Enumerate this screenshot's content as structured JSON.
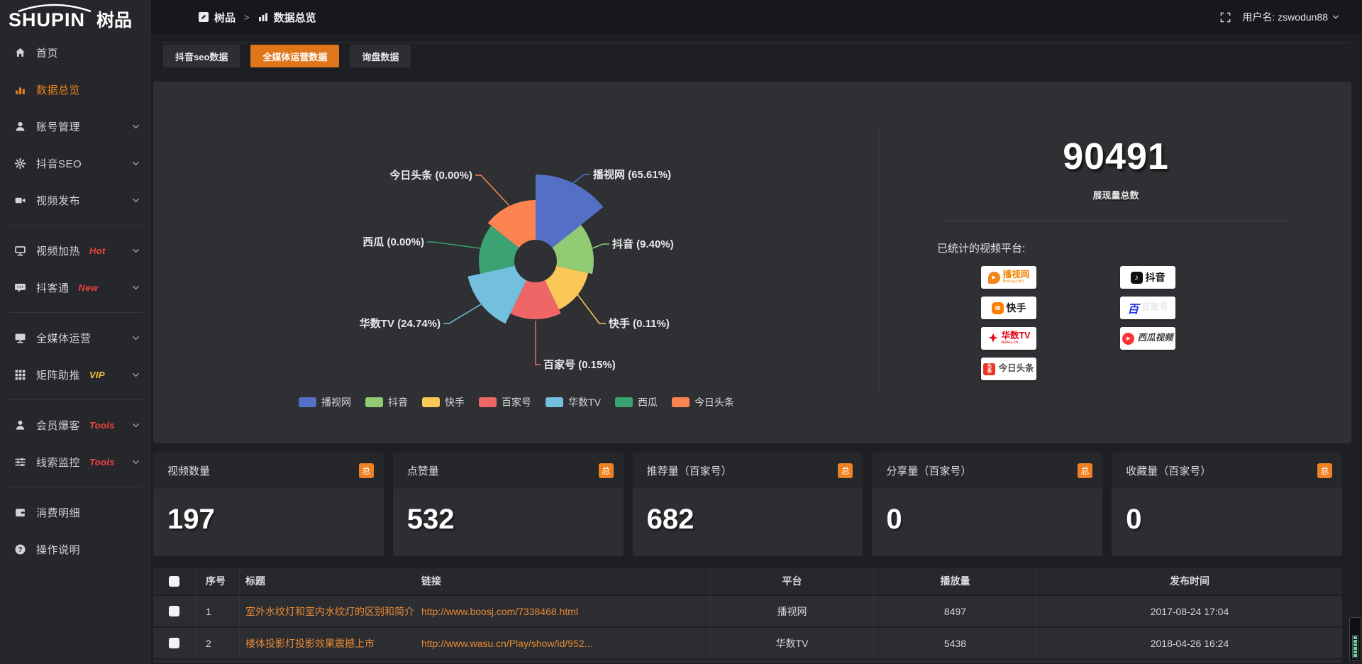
{
  "topbar": {
    "logo_text": "SHUPIN",
    "logo_suffix": "树品",
    "breadcrumb": [
      {
        "label": "树品"
      },
      {
        "label": "数据总览"
      }
    ],
    "breadcrumb_separator": ">",
    "username": "用户名: zswodun88"
  },
  "sidebar": {
    "items": [
      {
        "id": "home",
        "label": "首页",
        "icon": "home"
      },
      {
        "id": "data-overview",
        "label": "数据总览",
        "icon": "chart",
        "active": true
      },
      {
        "id": "account-manage",
        "label": "账号管理",
        "icon": "user",
        "chevron": true
      },
      {
        "id": "douyin-seo",
        "label": "抖音SEO",
        "icon": "gear",
        "chevron": true
      },
      {
        "id": "video-publish",
        "label": "视频发布",
        "icon": "camera",
        "chevron": true,
        "divider_after": true
      },
      {
        "id": "video-heat",
        "label": "视频加热",
        "icon": "heat",
        "badge": "Hot",
        "badge_color": "#f34141",
        "chevron": true
      },
      {
        "id": "douketong",
        "label": "抖客通",
        "icon": "chat",
        "badge": "New",
        "badge_color": "#f34141",
        "chevron": true,
        "divider_after": true
      },
      {
        "id": "media-operation",
        "label": "全媒体运营",
        "icon": "monitor",
        "chevron": true
      },
      {
        "id": "matrix-boost",
        "label": "矩阵助推",
        "icon": "grid",
        "badge": "VIP",
        "badge_color": "#f2c13c",
        "chevron": true,
        "divider_after": true
      },
      {
        "id": "member-baoke",
        "label": "会员爆客",
        "icon": "person",
        "badge": "Tools",
        "badge_color": "#f34141",
        "chevron": true
      },
      {
        "id": "clue-monitor",
        "label": "线索监控",
        "icon": "sliders",
        "badge": "Tools",
        "badge_color": "#f34141",
        "chevron": true,
        "divider_after": true
      },
      {
        "id": "consume-detail",
        "label": "消费明细",
        "icon": "wallet"
      },
      {
        "id": "help",
        "label": "操作说明",
        "icon": "question"
      }
    ]
  },
  "tabs": [
    {
      "label": "抖音seo数据",
      "active": false
    },
    {
      "label": "全媒体运营数据",
      "active": true
    },
    {
      "label": "询盘数据",
      "active": false
    }
  ],
  "chart_data": {
    "type": "pie",
    "subtype": "nightingale-rose",
    "title": "",
    "label_format": "{name} ({percent}%)",
    "legend_position": "bottom",
    "inner_radius_hint": 30,
    "radius_hints": [
      122,
      82,
      76,
      82,
      98,
      80,
      86
    ],
    "items": [
      {
        "name": "播视网",
        "percent": 65.61,
        "color": "#5470C6"
      },
      {
        "name": "抖音",
        "percent": 9.4,
        "color": "#91CC75"
      },
      {
        "name": "快手",
        "percent": 0.11,
        "color": "#FAC858"
      },
      {
        "name": "百家号",
        "percent": 0.15,
        "color": "#EE6666"
      },
      {
        "name": "华数TV",
        "percent": 24.74,
        "color": "#73C0DE"
      },
      {
        "name": "西瓜",
        "percent": 0.0,
        "color": "#3BA272"
      },
      {
        "name": "今日头条",
        "percent": 0.0,
        "color": "#FC8452"
      }
    ],
    "legend": [
      "播视网",
      "抖音",
      "快手",
      "百家号",
      "华数TV",
      "西瓜",
      "今日头条"
    ]
  },
  "summary": {
    "total": "90491",
    "total_label": "展现量总数",
    "platforms_label": "已统计的视频平台:",
    "platforms": [
      {
        "name": "播视网",
        "sub": "boosj.com",
        "style": "boosj"
      },
      {
        "name": "快手",
        "style": "kuaishou"
      },
      {
        "name": "华数TV",
        "sub": "wasu.cn",
        "style": "wasu"
      },
      {
        "name": "今日头条",
        "style": "toutiao"
      },
      {
        "name": "抖音",
        "style": "douyin"
      },
      {
        "name": "百家号",
        "style": "baijiahao"
      },
      {
        "name": "西瓜视频",
        "style": "xigua"
      }
    ]
  },
  "stat_cards": [
    {
      "title": "视频数量",
      "badge": "总",
      "value": "197"
    },
    {
      "title": "点赞量",
      "badge": "总",
      "value": "532"
    },
    {
      "title": "推荐量（百家号）",
      "badge": "总",
      "value": "682"
    },
    {
      "title": "分享量（百家号）",
      "badge": "总",
      "value": "0"
    },
    {
      "title": "收藏量（百家号）",
      "badge": "总",
      "value": "0"
    }
  ],
  "table": {
    "headers": [
      "序号",
      "标题",
      "链接",
      "平台",
      "播放量",
      "发布时间"
    ],
    "rows": [
      {
        "index": "1",
        "title": "室外水纹灯和室内水纹灯的区别和简介",
        "link": "http://www.boosj.com/7338468.html",
        "platform": "播视网",
        "plays": "8497",
        "published": "2017-08-24 17:04"
      },
      {
        "index": "2",
        "title": "楼体投影灯投影效果震撼上市",
        "link": "http://www.wasu.cn/Play/show/id/952...",
        "platform": "华数TV",
        "plays": "5438",
        "published": "2018-04-26 16:24"
      }
    ]
  },
  "colors": {
    "accent_orange": "#e0751a",
    "badge_orange": "#ef8122",
    "link_orange": "#e98a35"
  }
}
